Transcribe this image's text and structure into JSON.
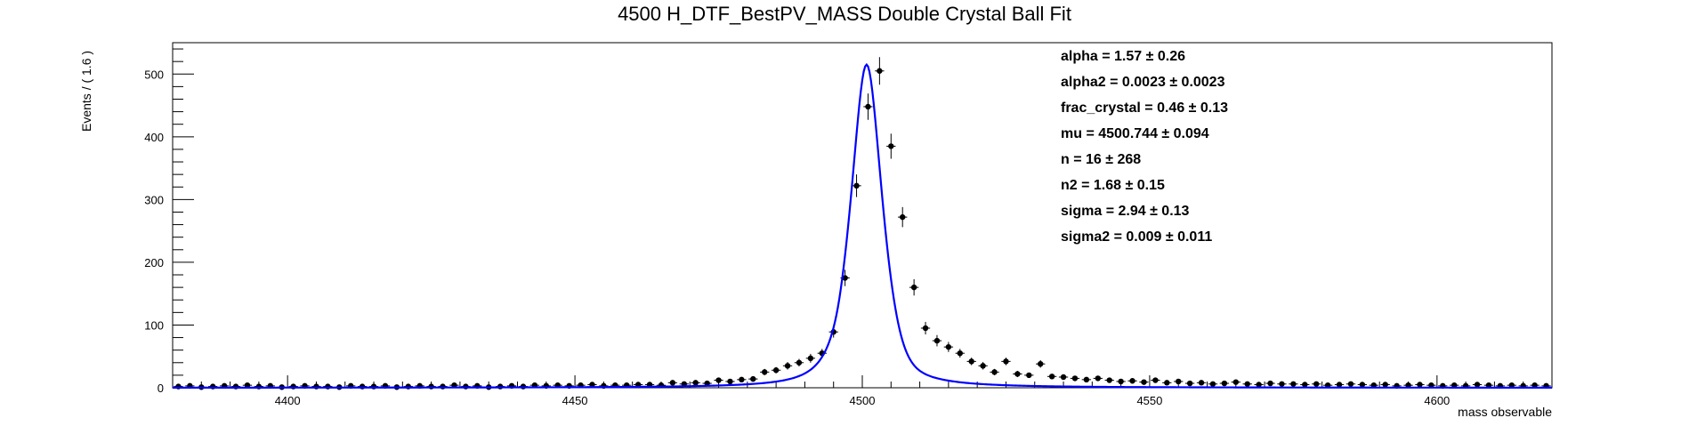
{
  "chart_data": {
    "type": "scatter",
    "title": "4500 H_DTF_BestPV_MASS Double Crystal Ball Fit",
    "xlabel": "mass observable",
    "ylabel": "Events / ( 1.6 )",
    "xlim": [
      4380,
      4620
    ],
    "ylim": [
      0,
      550
    ],
    "x_major_ticks": [
      4400,
      4450,
      4500,
      4550,
      4600
    ],
    "x_tick_labels": [
      "4400",
      "4450",
      "4500",
      "4550",
      "4600"
    ],
    "y_major_ticks": [
      0,
      100,
      200,
      300,
      400,
      500
    ],
    "y_tick_labels": [
      "0",
      "100",
      "200",
      "300",
      "400",
      "500"
    ],
    "grid": false,
    "legend": "none",
    "series": [
      {
        "kind": "points",
        "color": "#000000",
        "x": [
          4381,
          4383,
          4385,
          4387,
          4389,
          4391,
          4393,
          4395,
          4397,
          4399,
          4401,
          4403,
          4405,
          4407,
          4409,
          4411,
          4413,
          4415,
          4417,
          4419,
          4421,
          4423,
          4425,
          4427,
          4429,
          4431,
          4433,
          4435,
          4437,
          4439,
          4441,
          4443,
          4445,
          4447,
          4449,
          4451,
          4453,
          4455,
          4457,
          4459,
          4461,
          4463,
          4465,
          4467,
          4469,
          4471,
          4473,
          4475,
          4477,
          4479,
          4481,
          4483,
          4485,
          4487,
          4489,
          4491,
          4493,
          4495,
          4497,
          4499,
          4501,
          4503,
          4505,
          4507,
          4509,
          4511,
          4513,
          4515,
          4517,
          4519,
          4521,
          4523,
          4525,
          4527,
          4529,
          4531,
          4533,
          4535,
          4537,
          4539,
          4541,
          4543,
          4545,
          4547,
          4549,
          4551,
          4553,
          4555,
          4557,
          4559,
          4561,
          4563,
          4565,
          4567,
          4569,
          4571,
          4573,
          4575,
          4577,
          4579,
          4581,
          4583,
          4585,
          4587,
          4589,
          4591,
          4593,
          4595,
          4597,
          4599,
          4601,
          4603,
          4605,
          4607,
          4609,
          4611,
          4613,
          4615,
          4617,
          4619
        ],
        "y": [
          2,
          3,
          1,
          2,
          3,
          2,
          4,
          2,
          3,
          1,
          2,
          3,
          2,
          2,
          1,
          3,
          2,
          2,
          3,
          1,
          2,
          3,
          2,
          2,
          4,
          2,
          3,
          1,
          2,
          3,
          2,
          4,
          3,
          4,
          3,
          4,
          5,
          3,
          4,
          4,
          5,
          5,
          4,
          8,
          6,
          8,
          7,
          12,
          10,
          13,
          14,
          25,
          28,
          35,
          40,
          47,
          55,
          89,
          175,
          322,
          448,
          505,
          385,
          272,
          160,
          95,
          75,
          65,
          55,
          42,
          35,
          25,
          42,
          22,
          20,
          38,
          18,
          17,
          15,
          13,
          15,
          12,
          10,
          11,
          9,
          12,
          8,
          10,
          7,
          8,
          6,
          7,
          9,
          6,
          5,
          7,
          6,
          6,
          5,
          6,
          4,
          5,
          6,
          5,
          4,
          5,
          3,
          4,
          5,
          4,
          3,
          4,
          3,
          5,
          4,
          3,
          4,
          3,
          4,
          3
        ],
        "yerr": [
          1,
          2,
          1,
          1,
          2,
          1,
          2,
          1,
          2,
          1,
          1,
          2,
          1,
          1,
          1,
          2,
          1,
          1,
          2,
          1,
          1,
          2,
          1,
          1,
          2,
          1,
          2,
          1,
          1,
          2,
          1,
          2,
          2,
          2,
          2,
          2,
          2,
          2,
          2,
          2,
          2,
          2,
          2,
          3,
          2,
          3,
          3,
          3,
          3,
          4,
          4,
          5,
          5,
          6,
          6,
          7,
          7,
          9,
          13,
          18,
          21,
          22,
          20,
          16,
          13,
          10,
          9,
          8,
          7,
          6,
          6,
          5,
          6,
          5,
          4,
          6,
          4,
          4,
          4,
          4,
          4,
          3,
          3,
          3,
          3,
          3,
          3,
          3,
          3,
          3,
          2,
          3,
          3,
          2,
          2,
          3,
          2,
          2,
          2,
          2,
          2,
          2,
          2,
          2,
          2,
          2,
          2,
          2,
          2,
          2,
          2,
          2,
          2,
          2,
          2,
          2,
          2,
          2,
          2,
          2
        ],
        "xerr": 0.8
      },
      {
        "kind": "fit-curve",
        "color": "#0000ff"
      }
    ],
    "fit_parameters": [
      {
        "label": "alpha =",
        "value": "1.57",
        "error": "± 0.26"
      },
      {
        "label": "alpha2 =",
        "value": "0.0023",
        "error": "± 0.0023"
      },
      {
        "label": "frac_crystal =",
        "value": "0.46",
        "error": "± 0.13"
      },
      {
        "label": "mu =",
        "value": "4500.744",
        "error": "± 0.094"
      },
      {
        "label": "n =",
        "value": "16",
        "error": "± 268"
      },
      {
        "label": "n2 =",
        "value": "1.68",
        "error": "± 0.15"
      },
      {
        "label": "sigma =",
        "value": "2.94",
        "error": "± 0.13"
      },
      {
        "label": "sigma2 =",
        "value": "0.009",
        "error": "± 0.011"
      }
    ]
  }
}
